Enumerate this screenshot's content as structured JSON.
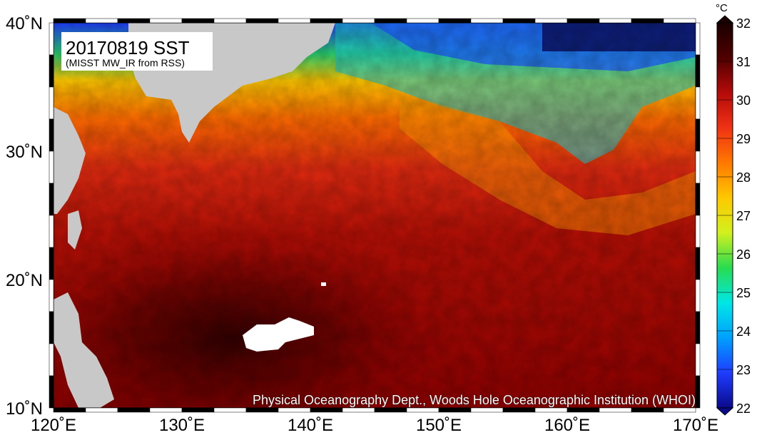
{
  "map": {
    "title": "20170819 SST",
    "subtitle": "(MISST MW_IR from RSS)",
    "credit": "Physical Oceanography Dept., Woods Hole Oceanographic Institution (WHOI)",
    "lon_range": [
      120,
      170
    ],
    "lat_range": [
      10,
      40
    ],
    "lon_ticks": [
      "120˚E",
      "130˚E",
      "140˚E",
      "150˚E",
      "160˚E",
      "170˚E"
    ],
    "lat_ticks": [
      "10˚N",
      "20˚N",
      "30˚N",
      "40˚N"
    ]
  },
  "colorbar": {
    "unit": "°C",
    "min": 22,
    "max": 32,
    "ticks": [
      "22",
      "23",
      "24",
      "25",
      "26",
      "27",
      "28",
      "29",
      "30",
      "31",
      "32"
    ],
    "colors": [
      "#0a0a8c",
      "#1e3cff",
      "#00a0ff",
      "#00e6e6",
      "#28dc50",
      "#d2f01e",
      "#ffc800",
      "#ff7800",
      "#f03214",
      "#b40a0a",
      "#500000",
      "#1a0000"
    ]
  },
  "regions": {
    "land_color": "#c8c8c8",
    "missing_color": "#ffffff"
  }
}
